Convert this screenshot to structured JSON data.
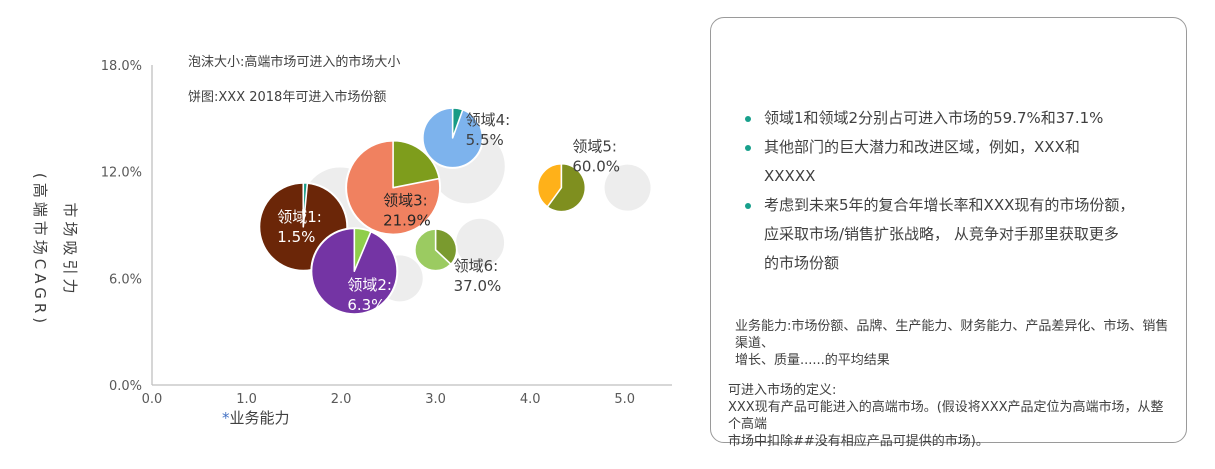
{
  "chart": {
    "annotation_bubble": "泡沫大小:高端市场可进入的市场大小",
    "annotation_pie": "饼图:XXX 2018年可进入市场份额",
    "x_axis_title_star": "*",
    "x_axis_title": "业务能力",
    "y_axis_title": "市场吸引力\n(高端市场CAGR)"
  },
  "chart_data": {
    "type": "scatter",
    "subtype": "bubble-pie",
    "xlabel": "*业务能力",
    "ylabel": "市场吸引力(高端市场CAGR)",
    "xlim": [
      0.0,
      5.5
    ],
    "ylim_pct": [
      0.0,
      18.0
    ],
    "x_ticks": [
      "0.0",
      "1.0",
      "2.0",
      "3.0",
      "4.0",
      "5.0"
    ],
    "y_ticks": [
      "0.0%",
      "6.0%",
      "12.0%",
      "18.0%"
    ],
    "grid": false,
    "bubble_size_meaning": "高端市场可进入的市场大小",
    "pie_meaning": "XXX 2018年可进入市场份额",
    "series": [
      {
        "name": "领域1",
        "share_pct": 1.5,
        "x": 1.6,
        "cagr_pct": 8.9,
        "radius_px": 44,
        "base_color": "#6b2608",
        "slice_color": "#189b85",
        "label_color": "#ffffff",
        "label_dx": -26,
        "label_dy": -5
      },
      {
        "name": "领域2",
        "share_pct": 6.3,
        "x": 2.14,
        "cagr_pct": 6.4,
        "radius_px": 43,
        "base_color": "#7434a4",
        "slice_color": "#8fce4b",
        "label_color": "#ffffff",
        "label_dx": -7,
        "label_dy": 19
      },
      {
        "name": "领域3",
        "share_pct": 21.9,
        "x": 2.55,
        "cagr_pct": 11.1,
        "radius_px": 47,
        "base_color": "#f08160",
        "slice_color": "#7e9d1c",
        "label_color": "#262626",
        "label_dx": -10,
        "label_dy": 18
      },
      {
        "name": "领域4",
        "share_pct": 5.5,
        "x": 3.18,
        "cagr_pct": 13.9,
        "radius_px": 30,
        "base_color": "#7db3ed",
        "slice_color": "#189b85",
        "label_color": "#404040",
        "label_dx": 13,
        "label_dy": -13
      },
      {
        "name": "领域5",
        "share_pct": 60.0,
        "x": 4.33,
        "cagr_pct": 11.1,
        "radius_px": 24,
        "base_color": "#ffb119",
        "slice_color": "#7f8f1f",
        "label_color": "#404040",
        "label_dx": 11,
        "label_dy": -36
      },
      {
        "name": "领域6",
        "share_pct": 37.0,
        "x": 3.0,
        "cagr_pct": 7.6,
        "radius_px": 21,
        "base_color": "#9bcb61",
        "slice_color": "#7a9a2e",
        "label_color": "#404040",
        "label_dx": 18,
        "label_dy": 21
      }
    ],
    "draw_order": [
      0,
      2,
      3,
      4,
      5,
      1
    ],
    "background_bubbles": [
      {
        "x": 1.99,
        "cagr_pct": 10.1,
        "radius_px": 38
      },
      {
        "x": 2.62,
        "cagr_pct": 6.0,
        "radius_px": 23
      },
      {
        "x": 3.34,
        "cagr_pct": 12.3,
        "radius_px": 37
      },
      {
        "x": 3.47,
        "cagr_pct": 8.0,
        "radius_px": 24
      },
      {
        "x": 5.03,
        "cagr_pct": 11.1,
        "radius_px": 23
      }
    ],
    "background_bubble_color": "#ededed",
    "axis_color": "#bfbfbf",
    "tick_label_color": "#595959"
  },
  "panel": {
    "bullets": [
      {
        "text": "领域1和领域2分别占可进入市场的59.7%和37.1%"
      },
      {
        "text": "其他部门的巨大潜力和改进区域，例如，XXX和\nXXXXX"
      },
      {
        "text": "考虑到未来5年的复合年增长率和XXX现有的市场份额，\n应采取市场/销售扩张战略， 从竞争对手那里获取更多\n的市场份额"
      }
    ],
    "footnote_capability": "业务能力:市场份额、品牌、生产能力、财务能力、产品差异化、市场、销售渠道、\n增长、质量......的平均结果",
    "footnote_market": "可进入市场的定义:\nXXX现有产品可能进入的高端市场。(假设将XXX产品定位为高端市场，从整个高端\n市场中扣除##没有相应产品可提供的市场)。"
  },
  "colors": {
    "bullet_dot": "#18a08c",
    "panel_border": "#9a9a9a",
    "body_text": "#404040",
    "accent_star": "#4472c4"
  }
}
